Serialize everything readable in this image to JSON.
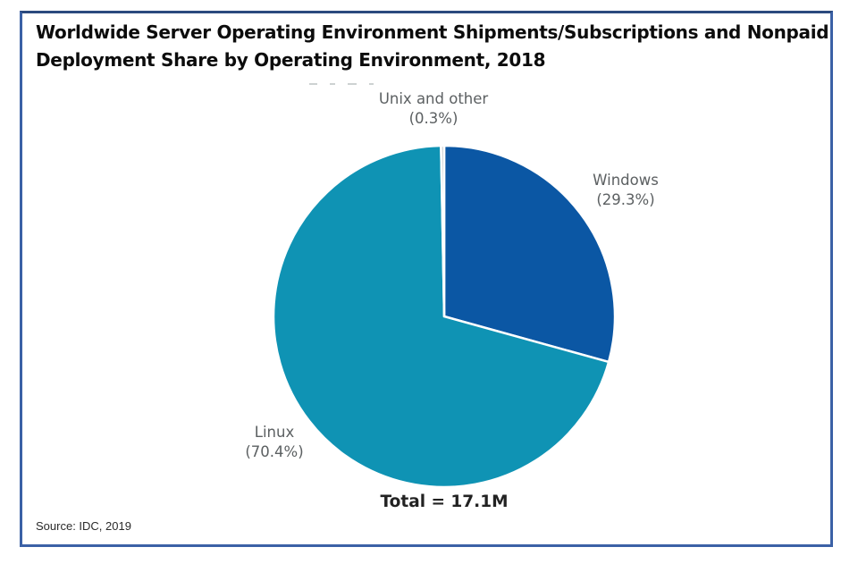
{
  "frame": {
    "border_color": "#3b61a6"
  },
  "header": {
    "title_line1": "Worldwide Server Operating Environment Shipments/Subscriptions and Nonpaid",
    "title_line2": "Deployment Share by Operating Environment, 2018"
  },
  "footer": {
    "source": "Source: IDC, 2019"
  },
  "chart_data": {
    "type": "pie",
    "title": "Worldwide Server Operating Environment Shipments/Subscriptions and Nonpaid Deployment Share by Operating Environment, 2018",
    "total_label": "Total = 17.1M",
    "total_value_millions": 17.1,
    "start_angle_deg": 0,
    "direction": "clockwise",
    "slice_border_color": "#ffffff",
    "label_color": "#5c6062",
    "segments": [
      {
        "label": "Windows",
        "value_pct": 29.3,
        "pct_label": "(29.3%)",
        "color": "#0b57a4"
      },
      {
        "label": "Linux",
        "value_pct": 70.4,
        "pct_label": "(70.4%)",
        "color": "#0f93b4"
      },
      {
        "label": "Unix and other",
        "value_pct": 0.3,
        "pct_label": "(0.3%)",
        "color": "#c6cbcc"
      }
    ]
  }
}
